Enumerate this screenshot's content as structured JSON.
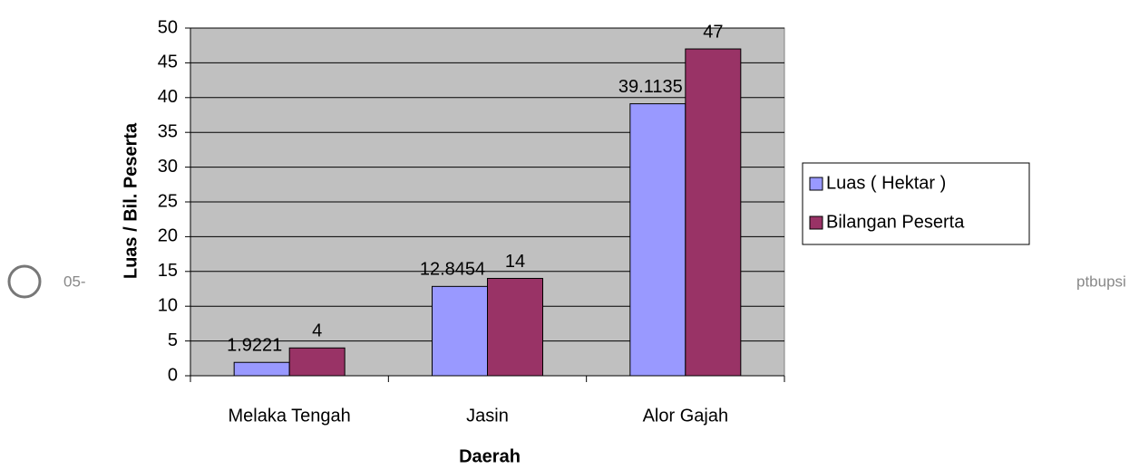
{
  "chart_data": {
    "type": "bar",
    "categories": [
      "Melaka Tengah",
      "Jasin",
      "Alor Gajah"
    ],
    "series": [
      {
        "name": "Luas ( Hektar )",
        "color": "#9999ff",
        "values": [
          1.9221,
          12.8454,
          39.1135
        ]
      },
      {
        "name": "Bilangan Peserta",
        "color": "#993366",
        "values": [
          4,
          14,
          47
        ]
      }
    ],
    "xlabel": "Daerah",
    "ylabel": "Luas / Bil. Peserta",
    "ylim": [
      0,
      50
    ],
    "yticks": [
      0,
      5,
      10,
      15,
      20,
      25,
      30,
      35,
      40,
      45,
      50
    ],
    "grid": true,
    "legend": "right",
    "plot_background": "#c0c0c0"
  },
  "watermark": {
    "left": "05-",
    "right": "ptbupsi"
  }
}
